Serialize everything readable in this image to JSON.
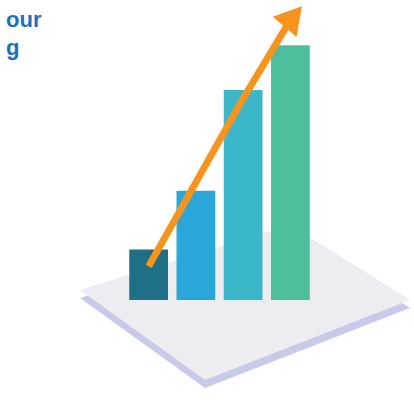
{
  "chart_data": {
    "type": "bar",
    "title": [
      "our",
      "g"
    ],
    "categories": [
      null,
      null,
      null,
      null
    ],
    "series": [
      {
        "type": "bar",
        "colors": [
          "#1f6f86",
          "#2aa7d8",
          "#3bb7c9",
          "#4dbf9f"
        ],
        "values": [
          18,
          39,
          75,
          91
        ]
      },
      {
        "type": "line",
        "color": "#f7941d",
        "marker": "triangle",
        "values": [
          12,
          42,
          72,
          100
        ]
      }
    ],
    "ylim": [
      0,
      100
    ],
    "grid": false,
    "tick_labels": false
  }
}
